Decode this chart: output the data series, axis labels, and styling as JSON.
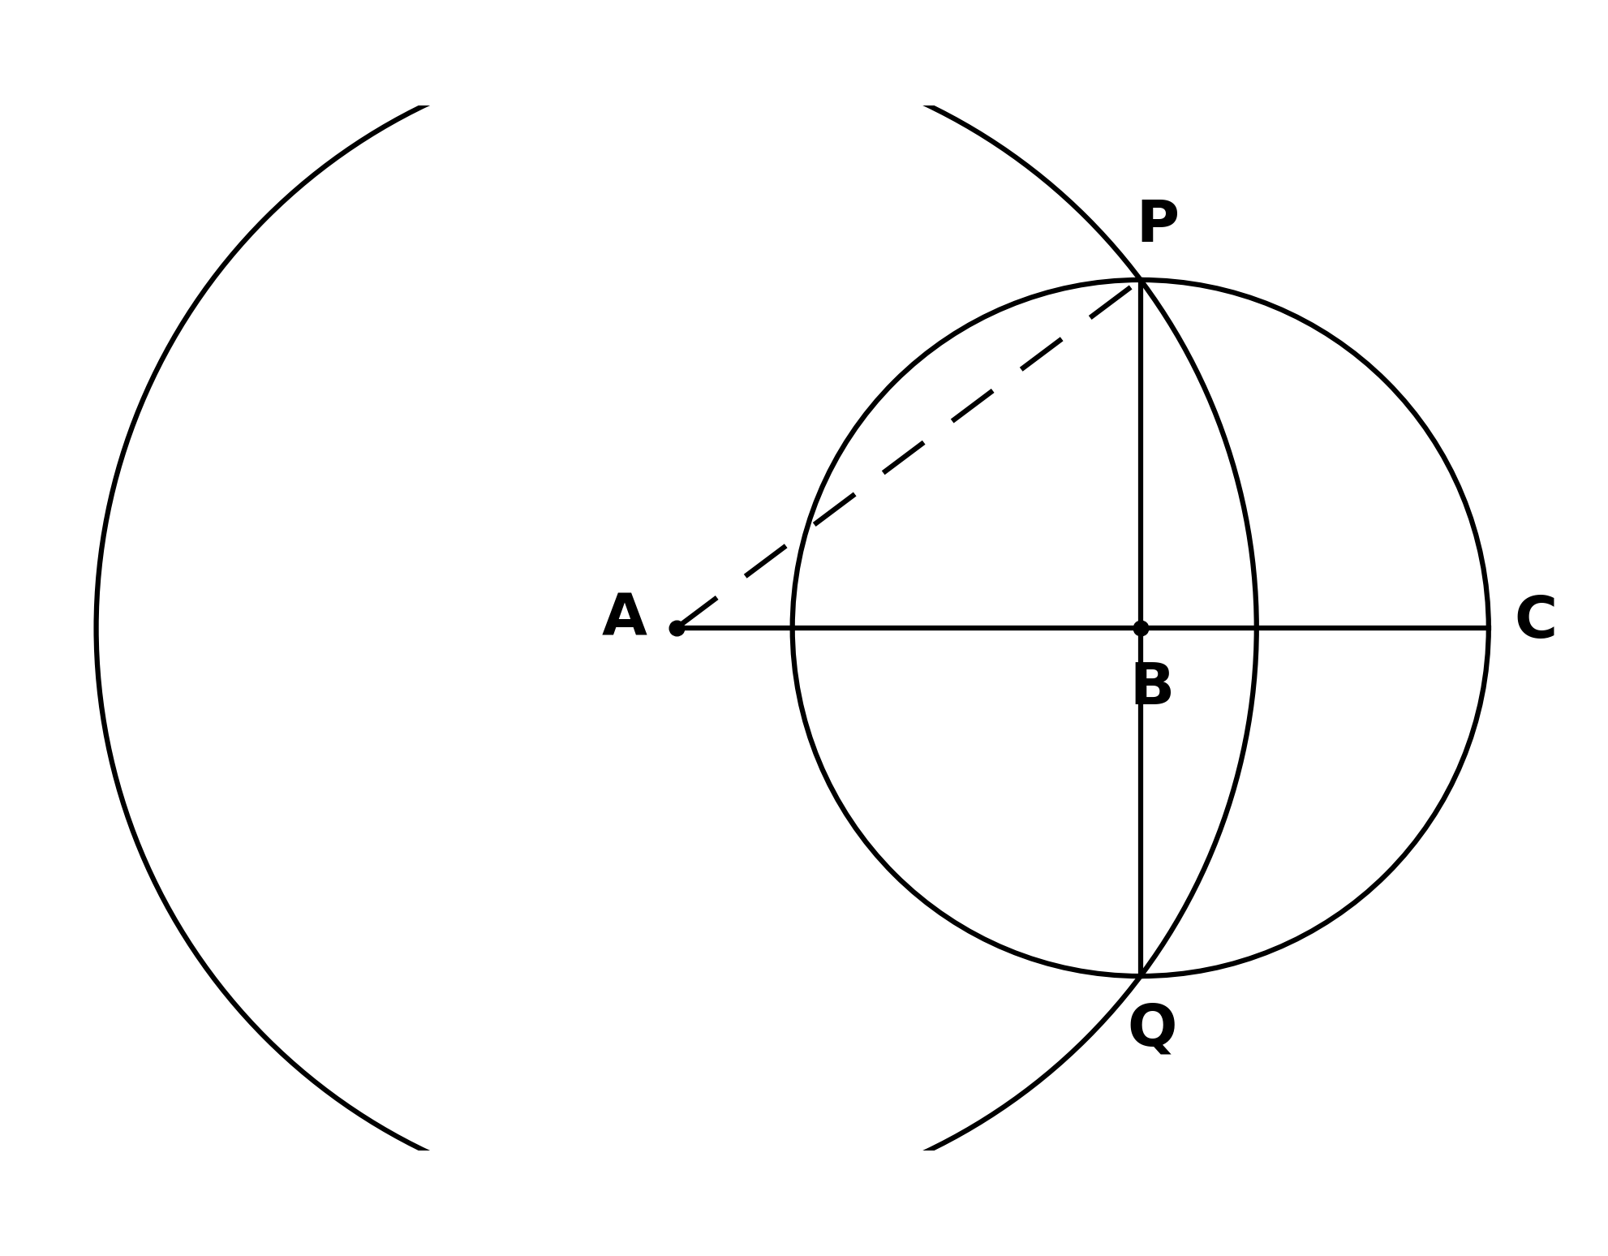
{
  "A": [
    0,
    0
  ],
  "B": [
    4,
    0
  ],
  "r_A": 5,
  "r_B": 3,
  "P": [
    4,
    3
  ],
  "Q": [
    4,
    -3
  ],
  "C": [
    7,
    0
  ],
  "line_width": 4.5,
  "dot_size": 180,
  "font_size": 52,
  "bg_color": "#ffffff",
  "circle_color": "#000000",
  "label_A": "A",
  "label_B": "B",
  "label_P": "P",
  "label_Q": "Q",
  "label_C": "C",
  "xlim": [
    -5.8,
    8.0
  ],
  "ylim": [
    -4.5,
    4.5
  ],
  "figsize": [
    19.82,
    15.48
  ],
  "dpi": 100
}
